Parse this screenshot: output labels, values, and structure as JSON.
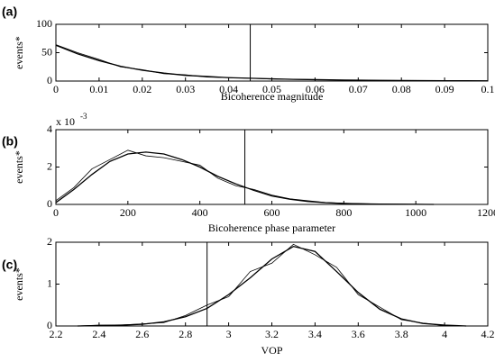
{
  "chart_data": [
    {
      "type": "line",
      "panel_label": "(a)",
      "ylabel": "events*",
      "xlabel": "Bicoherence magnitude",
      "x": [
        0,
        0.005,
        0.01,
        0.015,
        0.02,
        0.025,
        0.03,
        0.035,
        0.04,
        0.045,
        0.05,
        0.055,
        0.06,
        0.065,
        0.07,
        0.075,
        0.08,
        0.085,
        0.09,
        0.095,
        0.1
      ],
      "series": [
        {
          "color": "#000000",
          "values": [
            63,
            48,
            36,
            26,
            19,
            14,
            10,
            8,
            6,
            5,
            4,
            3,
            2.5,
            2,
            1.5,
            1.2,
            1,
            0.8,
            0.6,
            0.5,
            0.4
          ]
        },
        {
          "color": "#000000",
          "values": [
            64,
            50,
            38,
            25,
            20,
            13,
            11,
            7,
            6,
            5,
            3.5,
            3,
            2.6,
            1.8,
            1.6,
            1.1,
            1,
            0.7,
            0.6,
            0.4,
            0.4
          ]
        }
      ],
      "vline": 0.045,
      "xlim": [
        0,
        0.1
      ],
      "xticks": [
        0,
        0.01,
        0.02,
        0.03,
        0.04,
        0.05,
        0.06,
        0.07,
        0.08,
        0.09,
        0.1
      ],
      "ylim": [
        0,
        100
      ],
      "yticks": [
        0,
        50,
        100
      ],
      "grid": false
    },
    {
      "type": "line",
      "panel_label": "(b)",
      "ylabel": "events*",
      "xlabel": "Bicoherence phase parameter",
      "multiplier": "x 10",
      "multiplier_exponent": "-3",
      "x": [
        0,
        50,
        100,
        150,
        200,
        250,
        300,
        350,
        400,
        450,
        500,
        550,
        600,
        650,
        700,
        750,
        800,
        850,
        900,
        950,
        1000,
        1050
      ],
      "series": [
        {
          "color": "#000000",
          "values": [
            0.1,
            0.8,
            1.6,
            2.3,
            2.7,
            2.8,
            2.7,
            2.4,
            2.0,
            1.5,
            1.1,
            0.75,
            0.45,
            0.28,
            0.16,
            0.09,
            0.05,
            0.03,
            0.02,
            0.01,
            0.005,
            0
          ]
        },
        {
          "color": "#000000",
          "values": [
            0.2,
            0.9,
            1.9,
            2.4,
            2.9,
            2.6,
            2.5,
            2.3,
            2.1,
            1.4,
            1.0,
            0.8,
            0.5,
            0.3,
            0.2,
            0.1,
            0.06,
            0.04,
            0.02,
            0.02,
            0.01,
            0
          ]
        }
      ],
      "vline": 525,
      "xlim": [
        0,
        1200
      ],
      "xticks": [
        0,
        200,
        400,
        600,
        800,
        1000,
        1200
      ],
      "ylim": [
        0,
        4
      ],
      "yticks": [
        0,
        2,
        4
      ],
      "grid": false
    },
    {
      "type": "line",
      "panel_label": "(c)",
      "ylabel": "events*",
      "xlabel": "VOP",
      "x": [
        2.3,
        2.4,
        2.5,
        2.6,
        2.7,
        2.8,
        2.9,
        3.0,
        3.1,
        3.2,
        3.3,
        3.4,
        3.5,
        3.6,
        3.7,
        3.8,
        3.9,
        4.0,
        4.1
      ],
      "series": [
        {
          "color": "#000000",
          "values": [
            0,
            0.01,
            0.02,
            0.04,
            0.1,
            0.22,
            0.42,
            0.75,
            1.15,
            1.6,
            1.9,
            1.78,
            1.3,
            0.8,
            0.4,
            0.17,
            0.06,
            0.02,
            0
          ]
        },
        {
          "color": "#000000",
          "values": [
            0,
            0.02,
            0.02,
            0.05,
            0.08,
            0.25,
            0.5,
            0.7,
            1.3,
            1.5,
            1.95,
            1.7,
            1.4,
            0.75,
            0.45,
            0.15,
            0.07,
            0.01,
            0
          ]
        }
      ],
      "vline": 2.9,
      "xlim": [
        2.2,
        4.2
      ],
      "xticks": [
        2.2,
        2.4,
        2.6,
        2.8,
        3,
        3.2,
        3.4,
        3.6,
        3.8,
        4,
        4.2
      ],
      "ylim": [
        0,
        2
      ],
      "yticks": [
        0,
        1,
        2
      ],
      "grid": false
    }
  ]
}
